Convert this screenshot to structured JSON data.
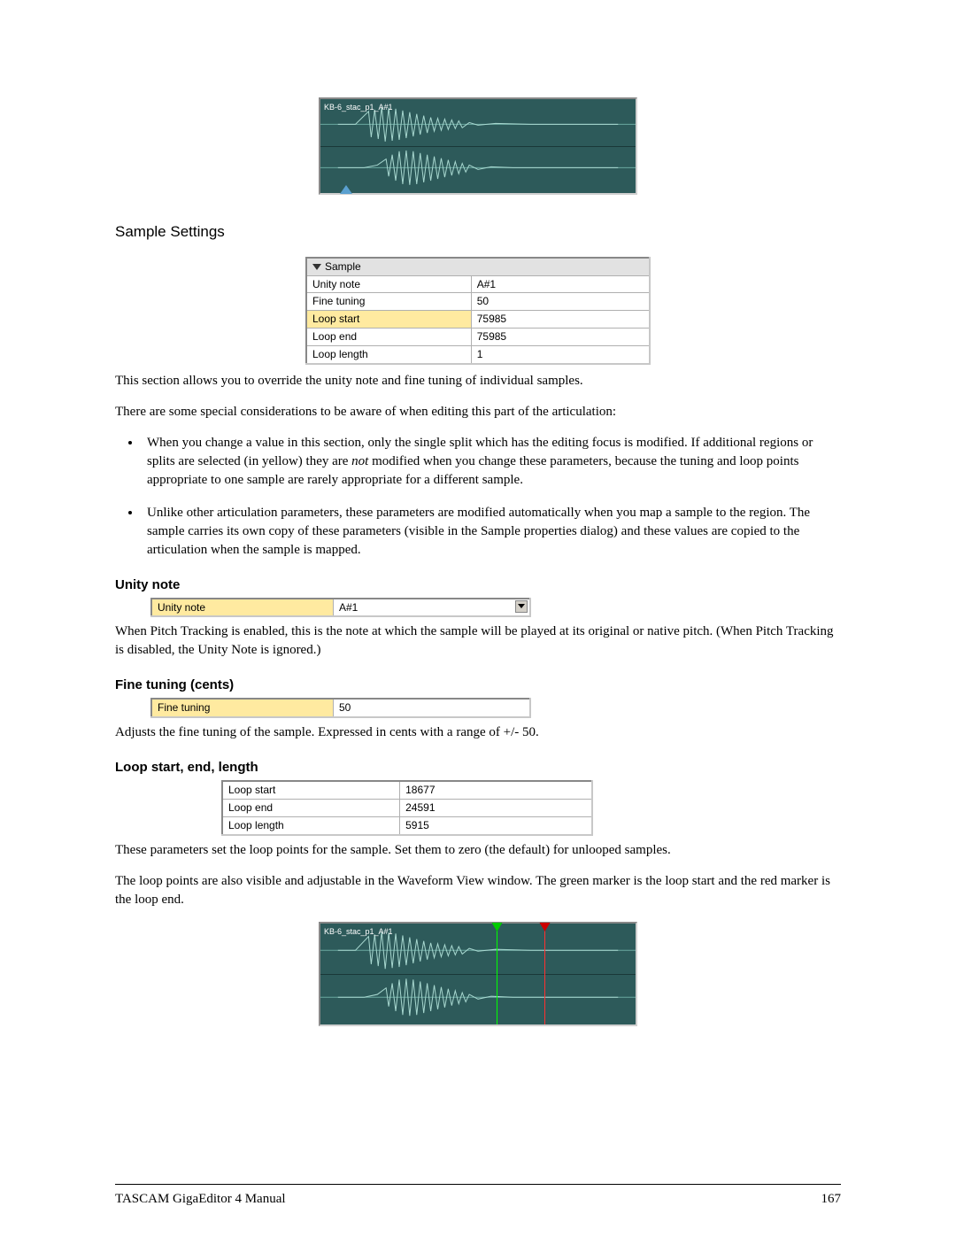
{
  "waveform": {
    "label": "KB-6_stac_p1_A#1",
    "bg_color": "#2d5a5a",
    "wave_color": "#a8d8d0",
    "marker_green_pos_pct": 56,
    "marker_red_pos_pct": 71
  },
  "section_title": "Sample Settings",
  "sample_table": {
    "header": "Sample",
    "rows": [
      {
        "label": "Unity note",
        "value": "A#1",
        "hl": false
      },
      {
        "label": "Fine tuning",
        "value": "50",
        "hl": false
      },
      {
        "label": "Loop start",
        "value": "75985",
        "hl": true
      },
      {
        "label": "Loop end",
        "value": "75985",
        "hl": false
      },
      {
        "label": "Loop length",
        "value": "1",
        "hl": false
      }
    ]
  },
  "para1": "This section allows you to override the unity note and fine tuning of individual samples.",
  "para2": "There are some special considerations to be aware of when editing this part of the articulation:",
  "bullets": {
    "b1_pre": "When you change a value in this section, only the single split which has the editing focus is modified.  If additional regions or splits are selected (in yellow) they are ",
    "b1_em": "not",
    "b1_post": " modified when you change these parameters, because the tuning and loop points appropriate to one sample are rarely appropriate for a different sample.",
    "b2": "Unlike other articulation parameters, these parameters are modified automatically when you map a sample to the region.  The sample carries its own copy of these parameters (visible in the Sample properties dialog) and these values are copied to the articulation when the sample is mapped."
  },
  "unity": {
    "heading": "Unity note",
    "row": {
      "label": "Unity note",
      "value": "A#1"
    },
    "text": "When Pitch Tracking is enabled, this is the note at which the sample will be played at its original or native pitch.  (When Pitch Tracking is disabled, the Unity Note is ignored.)"
  },
  "fine": {
    "heading": "Fine tuning (cents)",
    "row": {
      "label": "Fine tuning",
      "value": "50"
    },
    "text": "Adjusts the fine tuning of the sample.  Expressed in cents with a range of +/- 50."
  },
  "loop": {
    "heading": "Loop start, end, length",
    "rows": [
      {
        "label": "Loop start",
        "value": "18677"
      },
      {
        "label": "Loop end",
        "value": "24591"
      },
      {
        "label": "Loop length",
        "value": "5915"
      }
    ],
    "text1": "These parameters set the loop points for the sample.  Set them to zero (the default) for unlooped samples.",
    "text2": "The loop points are also visible and adjustable in the Waveform View window.  The green marker is the loop start and the red marker is the loop end."
  },
  "footer": {
    "doc": "TASCAM GigaEditor 4 Manual",
    "page": "167"
  }
}
